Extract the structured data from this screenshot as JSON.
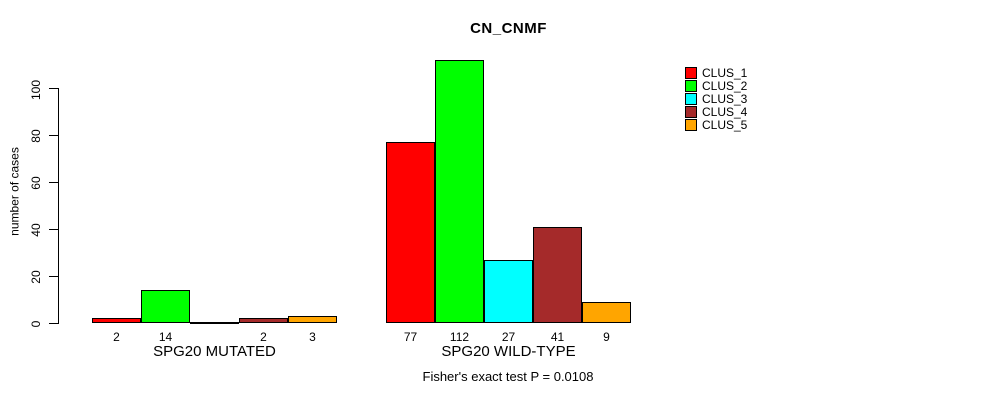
{
  "chart_data": {
    "type": "bar",
    "title": "CN_CNMF",
    "ylabel": "number of cases",
    "xlabel": "",
    "categories": [
      "SPG20 MUTATED",
      "SPG20 WILD-TYPE"
    ],
    "series": [
      {
        "name": "CLUS_1",
        "color": "#FF0000",
        "values": [
          2,
          77
        ]
      },
      {
        "name": "CLUS_2",
        "color": "#00FF00",
        "values": [
          14,
          112
        ]
      },
      {
        "name": "CLUS_3",
        "color": "#00FFFF",
        "values": [
          0,
          27
        ]
      },
      {
        "name": "CLUS_4",
        "color": "#A52A2A",
        "values": [
          2,
          41
        ]
      },
      {
        "name": "CLUS_5",
        "color": "#FFA500",
        "values": [
          3,
          9
        ]
      }
    ],
    "bar_labels": [
      [
        "2",
        "14",
        "",
        "2",
        "3"
      ],
      [
        "77",
        "112",
        "27",
        "41",
        "9"
      ]
    ],
    "yticks": [
      0,
      20,
      40,
      60,
      80,
      100
    ],
    "ylim": [
      0,
      112
    ],
    "grid": false,
    "legend_position": "right",
    "legend": [
      "CLUS_1",
      "CLUS_2",
      "CLUS_3",
      "CLUS_4",
      "CLUS_5"
    ],
    "annotation": "Fisher's exact test P = 0.0108"
  }
}
